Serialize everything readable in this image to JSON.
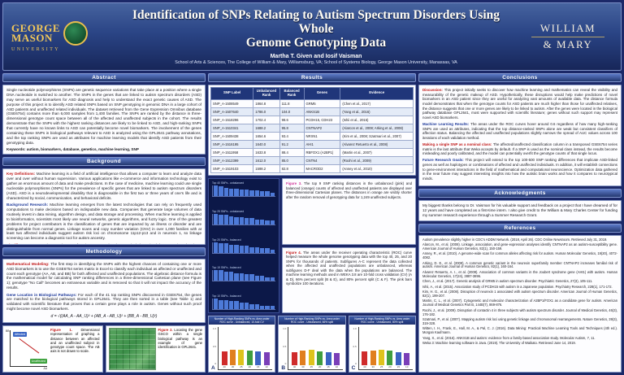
{
  "header": {
    "title_line1": "Identification of SNPs Relating to Autism Spectrum Disorders Using Whole",
    "title_line2": "Genome Genotyping Data",
    "authors": "Martha T. Given and Iosif Vaisman",
    "affiliation": "School of Arts & Sciences, The College of William & Mary, Williamsburg, VA; School of Systems Biology, George Mason University, Manassas, VA",
    "gmu_logo": {
      "word1": "GEORGE",
      "word2": "MASON",
      "word3": "UNIVERSITY"
    },
    "wm_logo": {
      "line1": "WILLIAM",
      "line2": "& MARY"
    }
  },
  "abstract": {
    "heading": "Abstract",
    "body": "Single nucleotide polymorphisms (SNPs) are genetic sequence variations that take place at a position where a single DNA nucleotide is switched to another. The SNPs in the genes that are linked to autism spectrum disorders (ASD) may serve as useful biomarkers for ASD diagnosis and help to understand the exact genetic causes of ASD. The purpose of this project is to identify ASD related SNPs based on SNP genotyping in genomic DNA in a large cohort of ASD patients and unaffected related individuals. The dataset retrieved from the Gene Expression Omnibus database (GSE6754) contains more than 6,000 samples from 1,400 families. The SNPs are ranked by the distance in three-dimensional genotype count space between all of the affected and unaffected subjects in the cohort. The results demonstrate that the SNPs with the highest ranking distances are likely to be linked to ASD, and high-ranking SNPs that currently have no known links to ASD can potentially become novel biomarkers. The involvement of the genes containing these SNPs in biological pathways relevant to ASD is analyzed using the GPL2641 pathway annotations, and the top ranking SNPs are used as attributes for machine learning models that identify ASD patients from their genotyping data.",
    "keywords": "Keywords: autism, biomarkers, database, genetics, machine learning, SNP"
  },
  "background": {
    "heading": "Background",
    "bullets": [
      {
        "lead": "Key Definitions:",
        "color": "#c01818",
        "text": "Machine learning is a field of artificial intelligence that allows a computer to learn and analyze data over and over without human supervision. Various applications like e-commerce and information technology exist to gather an enormous amount of data and make predictions. In the case of medicine, machine learning could use single nucleotide polymorphisms (SNPs) for the prevalence of specific genes that are linked to autism spectrum disorders (ASD). ASD is a neurodevelopmental disability that is diagnosable in the first two or three years of one's life and is characterized by social, communication, and behavioral deficits."
      },
      {
        "lead": "Background Research:",
        "color": "#1f3a9a",
        "text": "Machine learning emerges from the latest technologies that can rely on frequently used computations to make decisions based on indisputable new data. Companies that generate large volumes of data routinely invest in data mining, algorithm design, and data storage and processing. When machine learning is applied to bioinformatics, scientists most likely use neural networks, genetic algorithms, and fuzzy logic. One of the greatest problems for project contributors is the classification of genes that are impacted by an illness or disorder and are distinguishable from normal genes. Linkage scans and copy number variation (CNV) in over 1,000 families with at least two affected individuals suggest autism risk loci on chromosome 11p12-p13 and in neurexin 1, so linkage screening can become a diagnostic tool for autism ancestry."
      },
      {
        "lead": "Significance:",
        "color": "#c01818",
        "text": "In 2018, the CDC (Centers for Disease Control and Prevention) determined that approximately 1 in 59 U.S. children - and counting - are diagnosed with ASD. While machine learning plays a role in transforming several industry sectors, a majority of researchers think that artificial intelligence maximizes productivity in the job economy. Likewise, data science can solve real-world problems in natural science, international development, humanities, and many other disciplines that involve very large sets of information."
      }
    ]
  },
  "methodology": {
    "heading": "Methodology",
    "bullets": [
      {
        "lead": "Mathematical Modeling:",
        "color": "#c01818",
        "text": "The first step in identifying the SNPs with the highest chances of containing one or more ASD biomarkers is to use the GSE6754 series matrix in Excel to classify each individual as affected or unaffected and count each genotype (AA, AB, and BB) for both affected and unaffected populations. The algebraic distance formula is the mathematical model for calculating SNP ranking differences in a three-dimensional Cartesian plane (see Figure 1); genotype \"No Call\" becomes an extraneous variable and is removed so that it will not impact the accuracy of the results."
      },
      {
        "lead": "Gene Location in Biological Pathways:",
        "color": "#1f3a9a",
        "text": "For each of the 41 top ranking SNPs discovered in GSE6754, the genes are matched to the biological pathways stored in GPL2641. They are then sorted in a table (see Table 1) and validated with scientific literature that proves that a certain gene plays a role in autism. Genes without such proof might become novel ASD biomarkers."
      }
    ],
    "formula": "d = √((AA_A - AA_U)² + (AB_A - AB_U)² + (BB_A - BB_U)²)",
    "figure1": {
      "box1": "Affected",
      "box2": "Unaffected",
      "axis_x": "AA",
      "axis_y": "BB"
    },
    "figure1_lead": "Figure 1.",
    "figure1_caption": "Dimensional representation of graphing a distance between an affected and an unaffected subject in genotype count space. The AB axis is not drawn to scale.",
    "figure2_lead": "Figure 2.",
    "figure2_caption": "Locating the gene GSCO within a single biological pathway is an example of gene identification in GPL2641."
  },
  "results": {
    "heading": "Results",
    "table": {
      "headers": [
        "SNP Label",
        "Unbalanced Rank",
        "Balanced Rank",
        "Genes",
        "Evidence"
      ],
      "rows": [
        [
          "SNP_A-1508549",
          "1864.8",
          "111.8",
          "GRM5",
          "(Chen et al., 2017)"
        ],
        [
          "SNP_A-1507640",
          "1786.0",
          "104.0",
          "ANKS1B",
          "(Yang et al., 2016)"
        ],
        [
          "SNP_A-1518296",
          "1702.4",
          "98.6",
          "PCDH15, CDH23",
          "(Ishii et al., 2015)"
        ],
        [
          "SNP_A-1510341",
          "1688.2",
          "95.8",
          "CNTNAP2",
          "(Alarcon et al., 2008; Arking et al., 2008)"
        ],
        [
          "SNP_A-1509438",
          "1654.6",
          "93.4",
          "NRXN1",
          "(Kim et al., 2008; Szatmari et al., 2007)"
        ],
        [
          "SNP_A-1516195",
          "1640.0",
          "91.2",
          "AHI1",
          "(Alvarez Retuerto et al., 2008)"
        ],
        [
          "SNP_A-1511958",
          "1633.8",
          "88.4",
          "RBFOX1 (A2BP1)",
          "(Martin et al., 2007)"
        ],
        [
          "SNP_A-1512399",
          "1612.0",
          "85.0",
          "CNTN4",
          "(Roohi et al., 2009)"
        ],
        [
          "SNP_A-1519103",
          "1598.2",
          "82.8",
          "MACROD2",
          "(Anney et al., 2010)"
        ]
      ]
    },
    "figure3_lead": "Figure 3.",
    "figure3_text": "The top 9 SNP ranking distances in the unbalanced (pink) and balanced (orange) counts of affected and unaffected patients are displayed over three-dimensional Cartesian planes. The distances in orange are visibly shorter after the random removal of genotyping data for 1,249 unaffected subjects.",
    "figure4_lead": "Figure 4.",
    "figure4_text": "The areas under the receiver operating characteristic (ROC) curve helped measure the whole genome genotyping data with the top 40, 25, and 20 SNPs for thousands of patients. Subfigures A-C represent the data collected when the affected and unaffected populations are unbalanced, whereas subfigures D-F deal with the data when the populations are balanced. The machine learning methods used in WEKA 3.8 are 10-fold cross validation (CV) (A & D), 66% percent split (B & E), and 80% percent split (C & F). The pink bars symbolize 100 iterations."
  },
  "chart_data": [
    {
      "id": "snp-distance-panels",
      "type": "bar",
      "title": "Top SNP ranking distance distributions",
      "panels": [
        {
          "label": "Top 40 SNPs - unbalanced",
          "values": [
            10,
            9,
            8,
            7,
            7,
            6,
            6,
            5,
            5,
            4,
            4,
            3
          ]
        },
        {
          "label": "Top 25 SNPs - unbalanced",
          "values": [
            9,
            8,
            8,
            7,
            6,
            6,
            5,
            5,
            4,
            4,
            3,
            3
          ]
        },
        {
          "label": "Top 20 SNPs - balanced",
          "values": [
            8,
            7,
            7,
            6,
            6,
            5,
            5,
            4,
            4,
            3,
            3,
            2
          ]
        },
        {
          "label": "Top 15 SNPs - balanced",
          "values": [
            7,
            7,
            6,
            6,
            5,
            5,
            4,
            4,
            3,
            3,
            2,
            2
          ]
        },
        {
          "label": "Top 10 SNPs - balanced",
          "values": [
            7,
            6,
            6,
            5,
            5,
            4,
            4,
            3,
            3,
            2,
            2,
            2
          ]
        }
      ]
    },
    {
      "id": "roc-a",
      "type": "bar",
      "letter": "A",
      "title": "Number of High-Ranking SNPs vs. Area under ROC curve - Unbalanced, 10-fold CV",
      "categories": [
        "40",
        "30",
        "25",
        "20",
        "15",
        "10"
      ],
      "values": [
        0.58,
        0.62,
        0.65,
        0.61,
        0.57,
        0.52
      ],
      "colors": [
        "#cf2b2b",
        "#e07f1f",
        "#dec31d",
        "#3f9e3f",
        "#3a63c2",
        "#7a3fb8"
      ],
      "ylabel": "AUC",
      "ylim": [
        0,
        1
      ]
    },
    {
      "id": "roc-b",
      "type": "bar",
      "letter": "B",
      "title": "Number of High-Ranking SNPs vs. Area under ROC curve - Unbalanced, 66% split",
      "categories": [
        "40",
        "30",
        "25",
        "20",
        "15",
        "10"
      ],
      "values": [
        0.55,
        0.6,
        0.63,
        0.58,
        0.54,
        0.5
      ],
      "colors": [
        "#cf2b2b",
        "#e07f1f",
        "#dec31d",
        "#3f9e3f",
        "#3a63c2",
        "#7a3fb8"
      ],
      "ylabel": "AUC",
      "ylim": [
        0,
        1
      ]
    },
    {
      "id": "roc-c",
      "type": "bar",
      "letter": "C",
      "title": "Number of High-Ranking SNPs vs. Area under ROC curve - Unbalanced, 80% split",
      "categories": [
        "40",
        "30",
        "25",
        "20",
        "15",
        "10"
      ],
      "values": [
        0.56,
        0.61,
        0.62,
        0.59,
        0.53,
        0.49
      ],
      "colors": [
        "#cf2b2b",
        "#e07f1f",
        "#dec31d",
        "#3f9e3f",
        "#3a63c2",
        "#7a3fb8"
      ],
      "ylabel": "AUC",
      "ylim": [
        0,
        1
      ]
    }
  ],
  "conclusions": {
    "heading": "Conclusions",
    "bullets": [
      {
        "lead": "Discussion:",
        "color": "#c01818",
        "text": "This project initially seeks to discover how machine learning and mathematics can reveal the visibility and measurability of the genetic makeup of ASD. Hypothetically, these disruptions would help make predictions of novel biomarkers in an ASD patient since they are useful for analyzing vast amounts of available data. The distance formula model demonstrates that when the genotype counts for ASD patients are much higher than those for unaffected relatives, the distance suggests that one or more genes are likely to be linked to autism. After the genes were located in the biological pathway database GPL2641, most were supported with scientific literature; genes without such support may represent novel ASD biomarkers."
      },
      {
        "lead": "Machine Learning Results:",
        "color": "#1f3a9a",
        "text": "The areas under the ROC curves hover around 0.6 regardless of how many high-ranking SNPs are used as attributes, indicating that the top distance-ranked SNPs alone are weak but consistent classifiers of affection status. Balancing the affected and unaffected populations slightly narrows the spread of AUC values across 100 iterations of each validation method."
      },
      {
        "lead": "Making a single SNP as a nominal class:",
        "color": "#c01818",
        "text": "The affected/unaffected classification column in a transposed GSE6754 series matrix is the last attribute that Weka accepts by default. If a SNP is used as the nominal class instead, the results become misleading and poorly calibrated, and the model can potentially overfit the genotype counts of that single locus."
      },
      {
        "lead": "Future Research Goals:",
        "color": "#1f3a9a",
        "text": "This project will extend to the top 100-500 SNP ranking differences that implicate ASD-linked genes as well as haplotypes or combinations of affected and unaffected individuals. In addition, it will establish connections to gene-environment interactions in the field of mathematical and computational neuroscience. Optimization data gathered in the near future may suggest interesting insights into how the autistic brain works and how it compares to neurotypical minds."
      }
    ]
  },
  "acknowledgments": {
    "heading": "Acknowledgments",
    "body": "My biggest thanks belong to Dr. Vaisman for his valuable support and feedback on a project that I have dreamed of for 12 years and have completed as a first-time intern. I also give credit to the William & Mary Charles Center for funding my summer research experience through a Summer Research Grant."
  },
  "references": {
    "heading": "References",
    "items": [
      "Autism prevalence slightly higher in CDC's ADDM Network. (2018, April 26). CDC Online Newsroom. Retrieved July 31, 2019.",
      "Alarcon, M., et al. (2008). Linkage, association, and gene-expression analyses identify CNTNAP2 as an autism-susceptibility gene. American Journal of Human Genetics, 82(1), 150-159.",
      "Anney, R., et al. (2010). A genome-wide scan for common alleles affecting risk for autism. Human Molecular Genetics, 19(20), 4072-4082.",
      "Arking, D. E., et al. (2008). A common genetic variant in the neurexin superfamily member CNTNAP2 increases familial risk of autism. American Journal of Human Genetics, 82(1), 160-164.",
      "Alvarez Retuerto, A. I., et al. (2008). Association of common variants in the Joubert syndrome gene (AHI1) with autism. Human Molecular Genetics, 17(24), 3887-3896.",
      "Chen, J., et al. (2017). Genetic analysis of GRM5 in autism spectrum disorder. Psychiatric Genetics, 27(3), 105-111.",
      "Ishii, A., et al. (2015). Association study of PCDH15 with autism in a Japanese population. Psychiatry Research, 228(1), 171-172.",
      "Kim, H. G., et al. (2008). Disruption of neurexin 1 associated with autism spectrum disorder. American Journal of Human Genetics, 82(1), 199-207.",
      "Martin, C. L., et al. (2007). Cytogenetic and molecular characterization of A2BP1/FOX1 as a candidate gene for autism. American Journal of Medical Genetics Part B, 144B(7), 869-876.",
      "Roohi, J., et al. (2009). Disruption of contactin 4 in three subjects with autism spectrum disorder. Journal of Medical Genetics, 46(3), 176-182.",
      "Szatmari, P., et al. (2007). Mapping autism risk loci using genetic linkage and chromosomal rearrangements. Nature Genetics, 39(3), 319-328.",
      "Witten, I. H., Frank, E., Hall, M. A., & Pal, C. J. (2016). Data Mining: Practical Machine Learning Tools and Techniques (4th ed.). Morgan Kaufmann.",
      "Yang, X., et al. (2016). ANKS1B and autism: evidence from a family-based association study. Molecular Autism, 7, 11.",
      "Weka 3: Machine learning software in Java. (2019). The University of Waikato. Retrieved June 14, 2019."
    ]
  }
}
